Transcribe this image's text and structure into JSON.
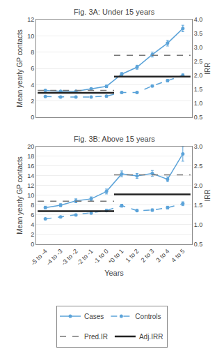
{
  "chart_data": [
    {
      "type": "line",
      "title": "Fig. 3A: Under 15 years",
      "ylabel": "Mean yearly GP contacts",
      "y2label": "IRR",
      "categories": [
        "-5 to -4",
        "-4 to -3",
        "-3 to -2",
        "-2 to -1",
        "-1 to 0",
        "*0 to 1",
        "1 to 2",
        "2 to 3",
        "3 to 4",
        "4 to 5"
      ],
      "tick_labels": "y",
      "series": [
        {
          "name": "Cases",
          "color": "#5ba3d9",
          "marker": "circle",
          "line_style": "solid",
          "values": [
            3.3,
            3.2,
            3.2,
            3.5,
            3.8,
            5.3,
            6.15,
            7.7,
            9.1,
            10.9
          ],
          "errors": [
            0.1,
            0.1,
            0.1,
            0.1,
            0.15,
            0.2,
            0.25,
            0.3,
            0.35,
            0.4
          ]
        },
        {
          "name": "Controls",
          "color": "#5ba3d9",
          "marker": "circle",
          "line_style": "dashed",
          "values": [
            2.55,
            2.5,
            2.48,
            2.5,
            2.6,
            3.05,
            3.05,
            3.85,
            4.5,
            5.15
          ],
          "errors": [
            0.05,
            0.05,
            0.05,
            0.05,
            0.08,
            0.1,
            0.1,
            0.12,
            0.15,
            0.18
          ]
        },
        {
          "name": "Pred.IR",
          "type": "hline",
          "color": "#777777",
          "line_style": "dashed",
          "values": [
            3.3,
            3.3,
            3.3,
            3.3,
            3.3,
            7.6,
            7.6,
            7.6,
            7.6,
            7.6
          ]
        },
        {
          "name": "Adj.IRR",
          "type": "hline",
          "color": "#222222",
          "line_style": "solid",
          "values": [
            3.0,
            3.0,
            3.0,
            3.0,
            3.0,
            5.0,
            5.0,
            5.0,
            5.0,
            5.0
          ]
        }
      ],
      "ylim": [
        0,
        12
      ],
      "yticks": [
        0,
        2,
        4,
        6,
        8,
        10,
        12
      ],
      "y2lim": [
        0.5,
        4.0
      ],
      "y2ticks": [
        0.5,
        {
          "value": 1.0,
          "label": "1.0"
        },
        1.5,
        {
          "value": 2.0,
          "label": "2.0"
        },
        2.5,
        {
          "value": 3.0,
          "label": "3.0"
        },
        3.5,
        {
          "value": 4.0,
          "label": "4.0"
        }
      ],
      "grid": true,
      "legend": "bottom"
    },
    {
      "type": "line",
      "title": "Fig. 3B: Above 15 years",
      "xlabel": "Years",
      "ylabel": "Mean yearly GP contacts",
      "y2label": "IRR",
      "categories": [
        "-5 to -4",
        "-4 to -3",
        "-3 to -2",
        "-2 to -1",
        "-1 to 0",
        "*0 to 1",
        "1 to 2",
        "2 to 3",
        "3 to 4",
        "4 to 5"
      ],
      "series": [
        {
          "name": "Cases",
          "color": "#5ba3d9",
          "marker": "circle",
          "line_style": "solid",
          "values": [
            7.5,
            8.0,
            8.9,
            9.3,
            10.8,
            14.4,
            14.0,
            14.5,
            13.3,
            18.5
          ],
          "errors": [
            0.3,
            0.3,
            0.4,
            0.4,
            0.5,
            0.6,
            0.5,
            0.6,
            0.5,
            1.5
          ]
        },
        {
          "name": "Controls",
          "color": "#5ba3d9",
          "marker": "circle",
          "line_style": "dashed",
          "values": [
            5.2,
            5.6,
            6.0,
            6.4,
            6.9,
            7.9,
            6.9,
            7.0,
            7.5,
            8.3
          ],
          "errors": [
            0.15,
            0.15,
            0.2,
            0.2,
            0.25,
            0.3,
            0.25,
            0.25,
            0.3,
            0.4
          ]
        },
        {
          "name": "Pred.IR",
          "type": "hline",
          "color": "#777777",
          "line_style": "dashed",
          "values": [
            8.8,
            8.8,
            8.8,
            8.8,
            8.8,
            14.2,
            14.2,
            14.2,
            14.2,
            14.2
          ]
        },
        {
          "name": "Adj.IRR",
          "type": "hline",
          "color": "#222222",
          "line_style": "solid",
          "values": [
            6.8,
            6.8,
            6.8,
            6.8,
            6.8,
            10.2,
            10.2,
            10.2,
            10.2,
            10.2
          ]
        }
      ],
      "ylim": [
        0,
        20
      ],
      "yticks": [
        0,
        2,
        4,
        6,
        8,
        10,
        12,
        14,
        16,
        18,
        20
      ],
      "y2lim": [
        0.5,
        3.0
      ],
      "y2ticks": [
        0.5,
        {
          "value": 1.0,
          "label": "1.0"
        },
        1.5,
        {
          "value": 2.0,
          "label": "2.0"
        },
        2.5,
        {
          "value": 3.0,
          "label": "3.0"
        }
      ],
      "grid": true,
      "legend": "bottom"
    }
  ]
}
